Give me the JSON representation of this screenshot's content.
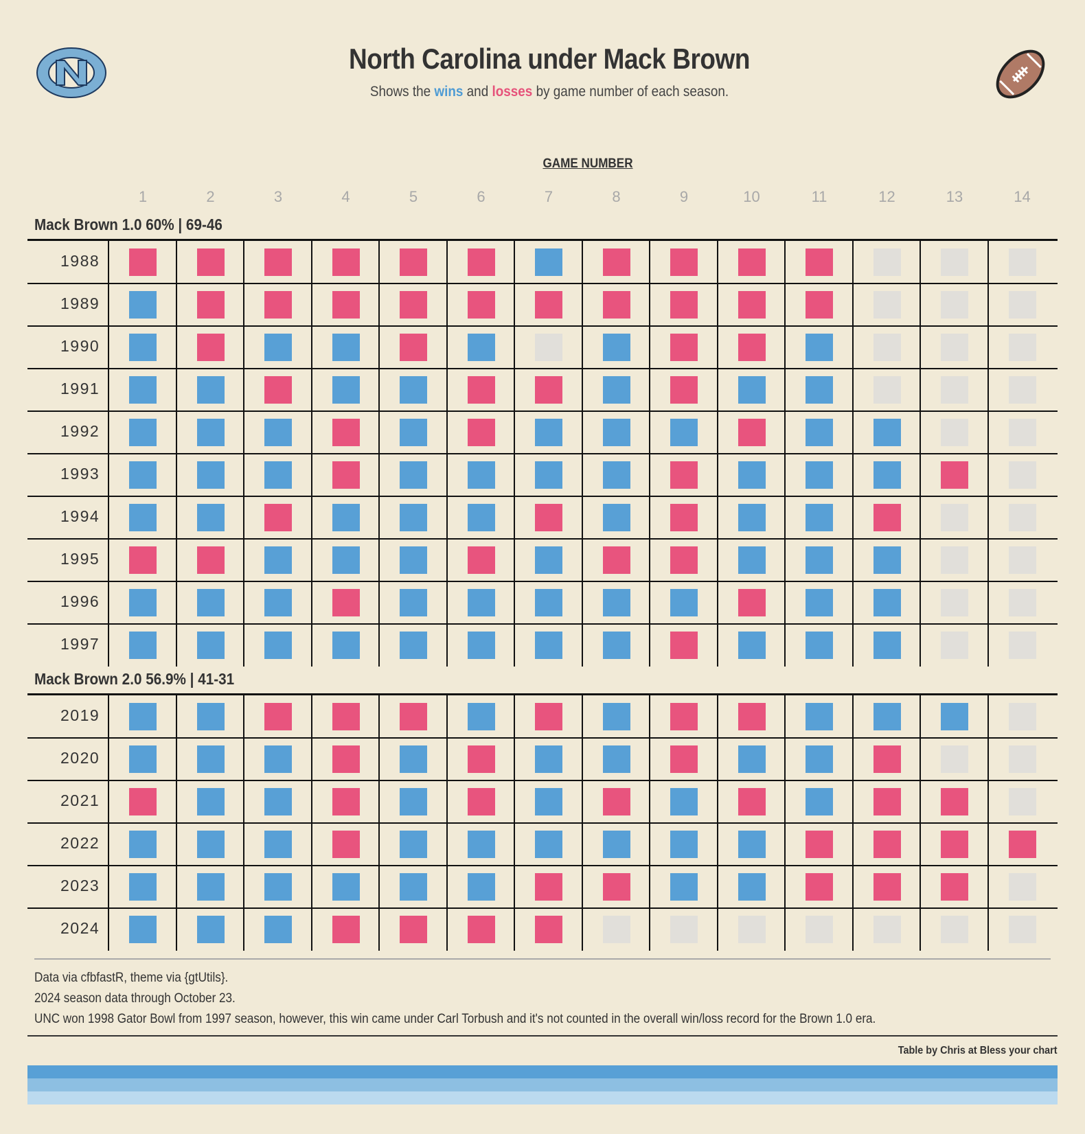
{
  "header": {
    "title": "North Carolina under Mack Brown",
    "subtitle_prefix": "Shows the ",
    "subtitle_wins": "wins",
    "subtitle_mid": " and ",
    "subtitle_losses": "losses",
    "subtitle_suffix": " by game number of each season."
  },
  "logos": {
    "left": "unc-interlocking-nc-logo",
    "right": "football-icon"
  },
  "colors": {
    "win": "#58A0D6",
    "loss": "#E8547E",
    "no_game": "#E1DFDA",
    "background": "#F1EAD7"
  },
  "chart_data": {
    "type": "table",
    "column_spanner": "GAME NUMBER",
    "columns": [
      "1",
      "2",
      "3",
      "4",
      "5",
      "6",
      "7",
      "8",
      "9",
      "10",
      "11",
      "12",
      "13",
      "14"
    ],
    "legend": {
      "W": "win",
      "L": "loss",
      "-": "no game"
    },
    "groups": [
      {
        "label": "Mack Brown 1.0 60% | 69-46",
        "rows": [
          {
            "year": "1988",
            "results": [
              "L",
              "L",
              "L",
              "L",
              "L",
              "L",
              "W",
              "L",
              "L",
              "L",
              "L",
              "-",
              "-",
              "-"
            ]
          },
          {
            "year": "1989",
            "results": [
              "W",
              "L",
              "L",
              "L",
              "L",
              "L",
              "L",
              "L",
              "L",
              "L",
              "L",
              "-",
              "-",
              "-"
            ]
          },
          {
            "year": "1990",
            "results": [
              "W",
              "L",
              "W",
              "W",
              "L",
              "W",
              "-",
              "W",
              "L",
              "L",
              "W",
              "-",
              "-",
              "-"
            ]
          },
          {
            "year": "1991",
            "results": [
              "W",
              "W",
              "L",
              "W",
              "W",
              "L",
              "L",
              "W",
              "L",
              "W",
              "W",
              "-",
              "-",
              "-"
            ]
          },
          {
            "year": "1992",
            "results": [
              "W",
              "W",
              "W",
              "L",
              "W",
              "L",
              "W",
              "W",
              "W",
              "L",
              "W",
              "W",
              "-",
              "-"
            ]
          },
          {
            "year": "1993",
            "results": [
              "W",
              "W",
              "W",
              "L",
              "W",
              "W",
              "W",
              "W",
              "L",
              "W",
              "W",
              "W",
              "L",
              "-"
            ]
          },
          {
            "year": "1994",
            "results": [
              "W",
              "W",
              "L",
              "W",
              "W",
              "W",
              "L",
              "W",
              "L",
              "W",
              "W",
              "L",
              "-",
              "-"
            ]
          },
          {
            "year": "1995",
            "results": [
              "L",
              "L",
              "W",
              "W",
              "W",
              "L",
              "W",
              "L",
              "L",
              "W",
              "W",
              "W",
              "-",
              "-"
            ]
          },
          {
            "year": "1996",
            "results": [
              "W",
              "W",
              "W",
              "L",
              "W",
              "W",
              "W",
              "W",
              "W",
              "L",
              "W",
              "W",
              "-",
              "-"
            ]
          },
          {
            "year": "1997",
            "results": [
              "W",
              "W",
              "W",
              "W",
              "W",
              "W",
              "W",
              "W",
              "L",
              "W",
              "W",
              "W",
              "-",
              "-"
            ]
          }
        ]
      },
      {
        "label": "Mack Brown 2.0 56.9% | 41-31",
        "rows": [
          {
            "year": "2019",
            "results": [
              "W",
              "W",
              "L",
              "L",
              "L",
              "W",
              "L",
              "W",
              "L",
              "L",
              "W",
              "W",
              "W",
              "-"
            ]
          },
          {
            "year": "2020",
            "results": [
              "W",
              "W",
              "W",
              "L",
              "W",
              "L",
              "W",
              "W",
              "L",
              "W",
              "W",
              "L",
              "-",
              "-"
            ]
          },
          {
            "year": "2021",
            "results": [
              "L",
              "W",
              "W",
              "L",
              "W",
              "L",
              "W",
              "L",
              "W",
              "L",
              "W",
              "L",
              "L",
              "-"
            ]
          },
          {
            "year": "2022",
            "results": [
              "W",
              "W",
              "W",
              "L",
              "W",
              "W",
              "W",
              "W",
              "W",
              "W",
              "L",
              "L",
              "L",
              "L"
            ]
          },
          {
            "year": "2023",
            "results": [
              "W",
              "W",
              "W",
              "W",
              "W",
              "W",
              "L",
              "L",
              "W",
              "W",
              "L",
              "L",
              "L",
              "-"
            ]
          },
          {
            "year": "2024",
            "results": [
              "W",
              "W",
              "W",
              "L",
              "L",
              "L",
              "L",
              "-",
              "-",
              "-",
              "-",
              "-",
              "-",
              "-"
            ]
          }
        ]
      }
    ]
  },
  "footnotes": [
    "Data via cfbfastR, theme via {gtUtils}.",
    "2024 season data through October 23.",
    "UNC won 1998 Gator Bowl from 1997 season, however, this win came under Carl Torbush and it's not counted in the overall win/loss record for the Brown 1.0 era."
  ],
  "credit": "Table by Chris at Bless your chart",
  "bands": [
    "#58A0D6",
    "#8DBFE2",
    "#BBDAEF"
  ]
}
